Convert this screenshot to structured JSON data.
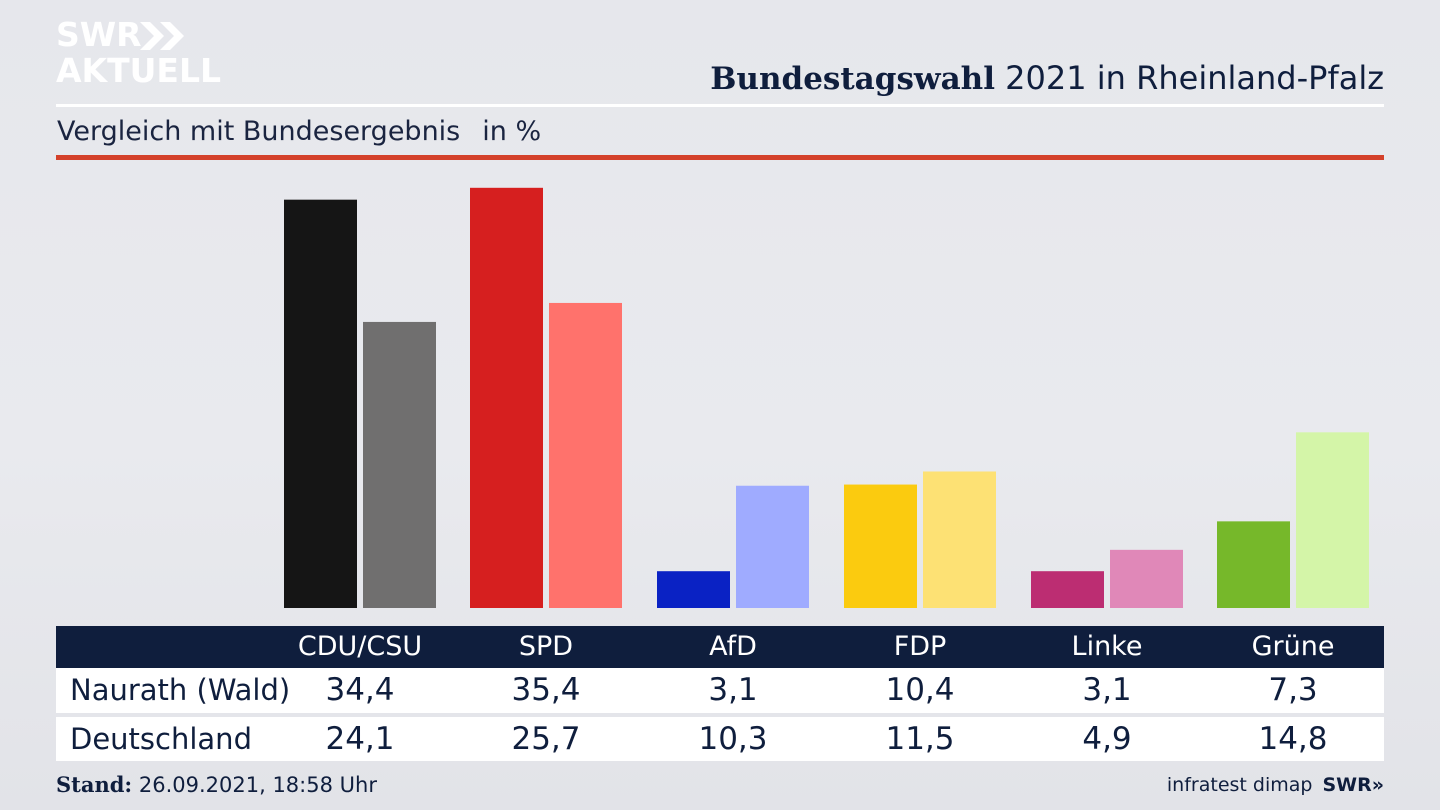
{
  "branding": {
    "logo_line1": "SWR",
    "logo_line2": "AKTUELL",
    "footer_logo": "SWR»"
  },
  "header": {
    "title_bold": "Bundestagswahl",
    "title_rest": " 2021 in Rheinland-Pfalz",
    "subtitle": "Vergleich mit Bundesergebnis",
    "unit": "in %"
  },
  "footer": {
    "stand_label": "Stand:",
    "stand_value": " 26.09.2021, 18:58 Uhr",
    "source": "infratest dimap"
  },
  "colors": {
    "navy": "#0f1e3d",
    "accent_red": "#d4412b"
  },
  "chart_data": {
    "type": "bar",
    "title": "Bundestagswahl 2021 in Rheinland-Pfalz",
    "subtitle": "Vergleich mit Bundesergebnis in %",
    "categories": [
      "CDU/CSU",
      "SPD",
      "AfD",
      "FDP",
      "Linke",
      "Grüne"
    ],
    "series": [
      {
        "name": "Naurath (Wald)",
        "values": [
          34.4,
          35.4,
          3.1,
          10.4,
          3.1,
          7.3
        ],
        "colors": [
          "#151515",
          "#d61f1f",
          "#0a22c4",
          "#fbcb0f",
          "#bc2d72",
          "#76b82a"
        ]
      },
      {
        "name": "Deutschland",
        "values": [
          24.1,
          25.7,
          10.3,
          11.5,
          4.9,
          14.8
        ],
        "colors": [
          "#706f6f",
          "#ff726c",
          "#9fabff",
          "#fde174",
          "#e088b8",
          "#d4f5a8"
        ]
      }
    ]
  }
}
